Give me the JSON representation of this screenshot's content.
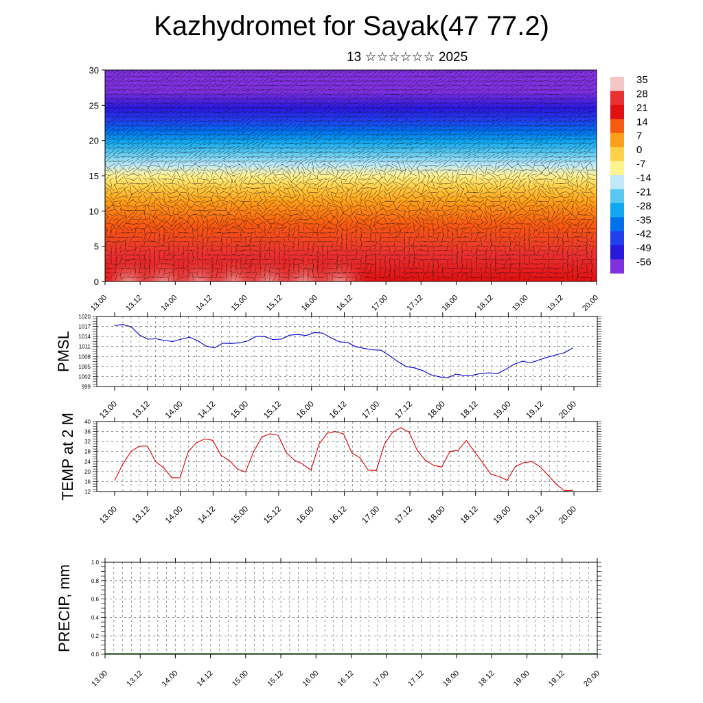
{
  "title": "Kazhydromet for Sayak(47 77.2)",
  "subtitle": "13 ☆☆☆☆☆☆ 2025",
  "chart_data": [
    {
      "type": "heatmap",
      "ylim": [
        0,
        30
      ],
      "yticks": [
        0,
        5,
        10,
        15,
        20,
        25,
        30
      ],
      "xtick_labels": [
        "13.00",
        "13.12",
        "14.00",
        "14.12",
        "15.00",
        "15.12",
        "16.00",
        "16.12",
        "17.00",
        "17.12",
        "18.00",
        "18.12",
        "19.00",
        "19.12",
        "20.00"
      ],
      "colorbar_labels": [
        "35",
        "28",
        "21",
        "14",
        "7",
        "0",
        "-7",
        "-14",
        "-21",
        "-28",
        "-35",
        "-42",
        "-49",
        "-56"
      ],
      "colors": {
        "c35": "#f4c6c6",
        "c28": "#ea3030",
        "c21": "#e21010",
        "c14": "#f85a10",
        "c7": "#ffa018",
        "c0": "#ffd048",
        "cm7": "#fff290",
        "cm14": "#c0e8f8",
        "cm21": "#58c8f0",
        "cm28": "#10a8f0",
        "cm35": "#0070f0",
        "cm42": "#2040f0",
        "cm49": "#2818e0",
        "cm56": "#8030e0"
      },
      "grid": false,
      "vectors": true
    },
    {
      "type": "line",
      "ylabel": "PMSL",
      "ylim": [
        999,
        1020
      ],
      "yticks": [
        999,
        1002,
        1005,
        1008,
        1011,
        1014,
        1017,
        1020
      ],
      "xtick_labels": [
        "13.00",
        "13.12",
        "14.00",
        "14.12",
        "15.00",
        "15.12",
        "16.00",
        "16.12",
        "17.00",
        "17.12",
        "18.00",
        "18.12",
        "19.00",
        "19.12",
        "20.00"
      ],
      "series": [
        {
          "values": [
            1017.3,
            1017.6,
            1016.9,
            1014.4,
            1013.2,
            1013.3,
            1012.8,
            1012.5,
            1013.2,
            1013.8,
            1012.7,
            1011.1,
            1010.6,
            1012.0,
            1011.9,
            1012.1,
            1012.7,
            1014.0,
            1014.0,
            1013.1,
            1013.2,
            1014.4,
            1014.6,
            1014.3,
            1015.2,
            1015.0,
            1013.6,
            1012.4,
            1012.2,
            1010.9,
            1010.4,
            1010.0,
            1009.9,
            1008.3,
            1006.5,
            1005.0,
            1004.6,
            1003.8,
            1002.5,
            1001.9,
            1001.6,
            1002.7,
            1002.3,
            1002.4,
            1002.9,
            1003.1,
            1002.9,
            1004.2,
            1005.7,
            1006.6,
            1006.1,
            1007.0,
            1007.8,
            1008.5,
            1009.1,
            1010.5
          ]
        }
      ],
      "color": "#0000cc",
      "grid": true
    },
    {
      "type": "line",
      "ylabel": "TEMP at 2 M",
      "ylim": [
        12,
        40
      ],
      "yticks": [
        12,
        16,
        20,
        24,
        28,
        32,
        36,
        40
      ],
      "xtick_labels": [
        "13.00",
        "13.12",
        "14.00",
        "14.12",
        "15.00",
        "15.12",
        "16.00",
        "16.12",
        "17.00",
        "17.12",
        "18.00",
        "18.12",
        "19.00",
        "19.12",
        "20.00"
      ],
      "series": [
        {
          "values": [
            16.5,
            23.0,
            28.0,
            30.1,
            30.2,
            24.0,
            21.5,
            17.5,
            17.5,
            28.0,
            31.5,
            33.0,
            32.5,
            26.5,
            24.5,
            21.0,
            19.8,
            28.0,
            33.8,
            35.1,
            34.5,
            27.5,
            24.5,
            23.0,
            20.5,
            31.0,
            35.3,
            36.0,
            35.0,
            27.5,
            25.5,
            20.6,
            20.4,
            31.0,
            35.8,
            37.5,
            35.8,
            28.5,
            24.5,
            22.5,
            21.8,
            28.0,
            28.5,
            32.4,
            28.0,
            23.5,
            19.0,
            18.0,
            16.5,
            22.0,
            23.5,
            24.0,
            22.0,
            18.5,
            15.0,
            12.3,
            12.5
          ]
        }
      ],
      "color": "#dd0000",
      "grid": true
    },
    {
      "type": "bar",
      "ylabel": "PRECIP, mm",
      "ylim": [
        0,
        1
      ],
      "yticks": [
        0.0,
        0.2,
        0.4,
        0.6,
        0.8,
        1.0
      ],
      "ytick_labels": [
        "0.0",
        "0.2",
        "0.4",
        "0.6",
        "0.8",
        "1.0"
      ],
      "xtick_labels": [
        "13.00",
        "13.12",
        "14.00",
        "14.12",
        "15.00",
        "15.12",
        "16.00",
        "16.12",
        "17.00",
        "17.12",
        "18.00",
        "18.12",
        "19.00",
        "19.12",
        "20.00"
      ],
      "series": [
        {
          "values": [
            0,
            0,
            0,
            0,
            0,
            0,
            0,
            0,
            0,
            0,
            0,
            0,
            0,
            0,
            0,
            0,
            0,
            0,
            0,
            0,
            0,
            0,
            0,
            0,
            0,
            0,
            0,
            0,
            0,
            0,
            0,
            0,
            0,
            0,
            0,
            0,
            0,
            0,
            0,
            0,
            0,
            0,
            0,
            0,
            0,
            0,
            0,
            0,
            0,
            0,
            0,
            0,
            0,
            0,
            0,
            0,
            0
          ]
        }
      ],
      "color": "#006400",
      "grid": true
    }
  ]
}
